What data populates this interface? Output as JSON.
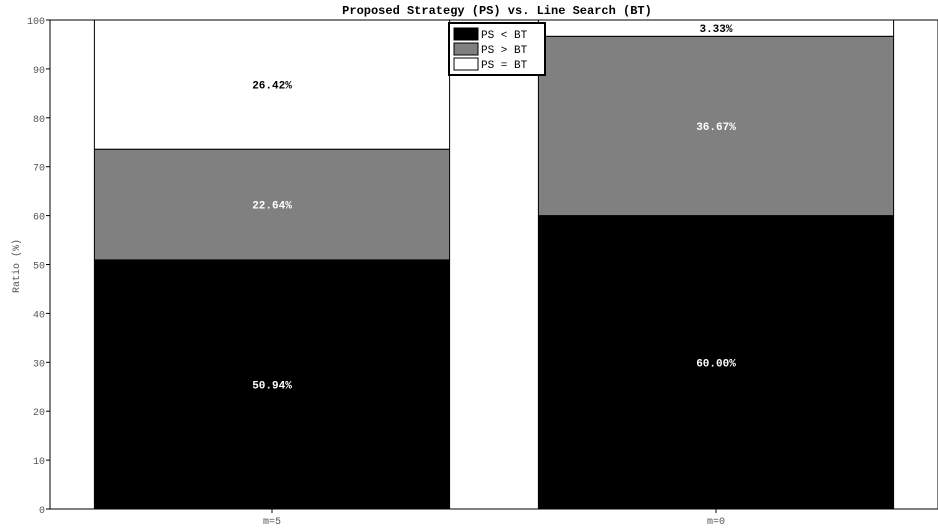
{
  "chart_data": {
    "type": "bar",
    "stacked": true,
    "title": "Proposed Strategy (PS) vs. Line Search (BT)",
    "xlabel": "",
    "ylabel": "Ratio (%)",
    "ylim": [
      0,
      100
    ],
    "yticks": [
      0,
      10,
      20,
      30,
      40,
      50,
      60,
      70,
      80,
      90,
      100
    ],
    "categories": [
      "m=5",
      "m=0"
    ],
    "series": [
      {
        "name": "PS < BT",
        "values": [
          50.94,
          60.0
        ],
        "labels": [
          "50.94%",
          "60.00%"
        ],
        "color": "#000000",
        "label_color": "#ffffff"
      },
      {
        "name": "PS > BT",
        "values": [
          22.64,
          36.67
        ],
        "labels": [
          "22.64%",
          "36.67%"
        ],
        "color": "#808080",
        "label_color": "#ffffff"
      },
      {
        "name": "PS = BT",
        "values": [
          26.42,
          3.33
        ],
        "labels": [
          "26.42%",
          "3.33%"
        ],
        "color": "#ffffff",
        "label_color": "#000000"
      }
    ],
    "legend_position": "top-center",
    "grid": false
  }
}
